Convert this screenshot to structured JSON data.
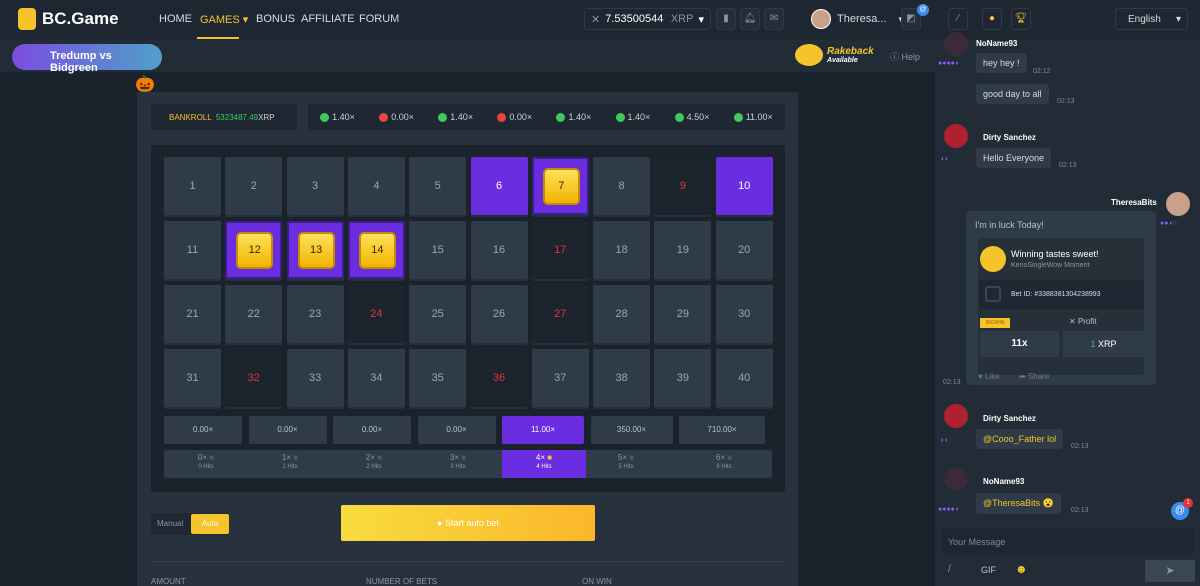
{
  "header": {
    "logo": "BC.Game",
    "nav": [
      "HOME",
      "GAMES",
      "BONUS",
      "AFFILIATE",
      "FORUM"
    ],
    "active_nav": "GAMES",
    "balance": "7.53500544",
    "currency": "XRP",
    "username": "Theresa...",
    "notif_badge": "@"
  },
  "subheader": {
    "banner": "Tredump vs Bidgreen",
    "rakeback": "Rakeback",
    "rakeback_sub": "Available",
    "help": "Help"
  },
  "game": {
    "bankroll_label": "BANKROLL",
    "bankroll_value": "5323487.49",
    "bankroll_currency": "XRP",
    "history": [
      {
        "v": "1.40×",
        "c": "#3fc95e"
      },
      {
        "v": "0.00×",
        "c": "#e84545"
      },
      {
        "v": "1.40×",
        "c": "#3fc95e"
      },
      {
        "v": "0.00×",
        "c": "#e84545"
      },
      {
        "v": "1.40×",
        "c": "#3fc95e"
      },
      {
        "v": "1.40×",
        "c": "#3fc95e"
      },
      {
        "v": "4.50×",
        "c": "#3fc95e"
      },
      {
        "v": "11.00×",
        "c": "#3fc95e"
      }
    ],
    "picked": [
      6,
      10
    ],
    "hits": [
      7,
      12,
      13,
      14
    ],
    "misses": [
      9,
      17,
      24,
      27,
      32,
      36
    ],
    "payouts": [
      "0.00×",
      "0.00×",
      "0.00×",
      "0.00×",
      "11.00×",
      "350.00×",
      "710.00×"
    ],
    "active_payout": 4,
    "hit_counts": [
      {
        "x": "0×",
        "label": "0 Hits"
      },
      {
        "x": "1×",
        "label": "1 Hits"
      },
      {
        "x": "2×",
        "label": "2 Hits"
      },
      {
        "x": "3×",
        "label": "3 Hits"
      },
      {
        "x": "4×",
        "label": "4 Hits"
      },
      {
        "x": "5×",
        "label": "5 Hits"
      },
      {
        "x": "6×",
        "label": "6 Hits"
      }
    ],
    "mode_manual": "Manual",
    "mode_auto": "Auto",
    "start_button": "Start auto bet",
    "fields": [
      "AMOUNT",
      "NUMBER OF BETS",
      "ON WIN"
    ]
  },
  "chat": {
    "language": "English",
    "messages": [
      {
        "user": "NoName93",
        "text": "hey hey !",
        "time": "02:12"
      },
      {
        "user": "",
        "text": "good day to all",
        "time": "02:13"
      },
      {
        "user": "Dirty Sanchez",
        "text": "Hello Everyone",
        "time": "02:13"
      },
      {
        "user": "TheresaBits",
        "text": "I'm in luck Today!",
        "time": "02:13"
      },
      {
        "user": "Dirty Sanchez",
        "text": "@Cooo_Father lol",
        "time": "02:13"
      },
      {
        "user": "NoName93",
        "text": "@TheresaBits 😮",
        "time": "02:13"
      }
    ],
    "card": {
      "title": "Winning tastes sweet!",
      "sub": "KenoSingleWow Moment",
      "bet_id": "Bet ID: #3388381304238993",
      "badge": "BIGWIN",
      "profit_label": "Profit",
      "multiplier": "11x",
      "profit_amount": "1",
      "profit_currency": "XRP",
      "like": "Like",
      "share": "Share"
    },
    "input_placeholder": "Your Message",
    "gif": "GIF",
    "mention_badge": "1"
  }
}
